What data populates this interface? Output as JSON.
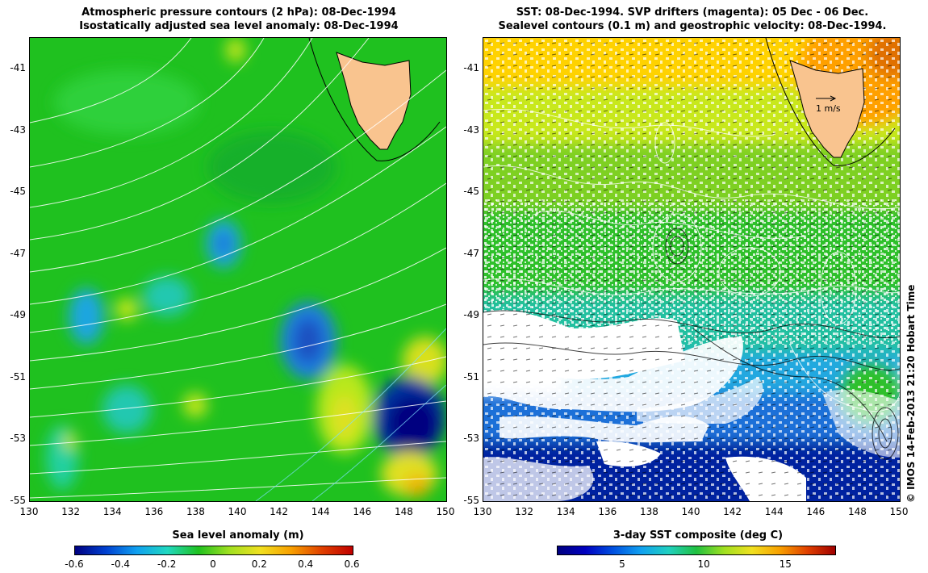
{
  "left_panel": {
    "title_line1": "Atmospheric pressure contours (2 hPa): 08-Dec-1994",
    "title_line2": "Isostatically adjusted sea level anomaly: 08-Dec-1994",
    "y_ticks": [
      "-41",
      "-43",
      "-45",
      "-47",
      "-49",
      "-51",
      "-53",
      "-55"
    ],
    "x_ticks": [
      "130",
      "132",
      "134",
      "136",
      "138",
      "140",
      "142",
      "144",
      "146",
      "148",
      "150"
    ],
    "colorbar_label": "Sea level anomaly (m)",
    "colorbar_ticks": [
      "-0.6",
      "-0.4",
      "-0.2",
      "0",
      "0.2",
      "0.4",
      "0.6"
    ]
  },
  "right_panel": {
    "title_line1": "SST: 08-Dec-1994. SVP drifters (magenta): 05 Dec - 06 Dec.",
    "title_line2": "Sealevel contours (0.1 m) and geostrophic velocity: 08-Dec-1994.",
    "y_ticks": [
      "-41",
      "-43",
      "-45",
      "-47",
      "-49",
      "-51",
      "-53",
      "-55"
    ],
    "x_ticks": [
      "130",
      "132",
      "134",
      "136",
      "138",
      "140",
      "142",
      "144",
      "146",
      "148",
      "150"
    ],
    "velocity_scale_label": "1 m/s",
    "colorbar_label": "3-day SST composite (deg C)",
    "colorbar_ticks": [
      "5",
      "10",
      "15"
    ]
  },
  "credit": "© IMOS 14-Feb-2013 21:20 Hobart Time",
  "map_extent": {
    "lon": [
      130,
      150
    ],
    "lat": [
      -55,
      -40
    ]
  },
  "colors": {
    "land": "#f9c48f",
    "ssh_low": "#000080",
    "ssh_mid": "#1fc11f",
    "ssh_high": "#c00000",
    "sst_cold": "#00007f",
    "sst_warm": "#ffb000",
    "contour": "#ffffff"
  }
}
